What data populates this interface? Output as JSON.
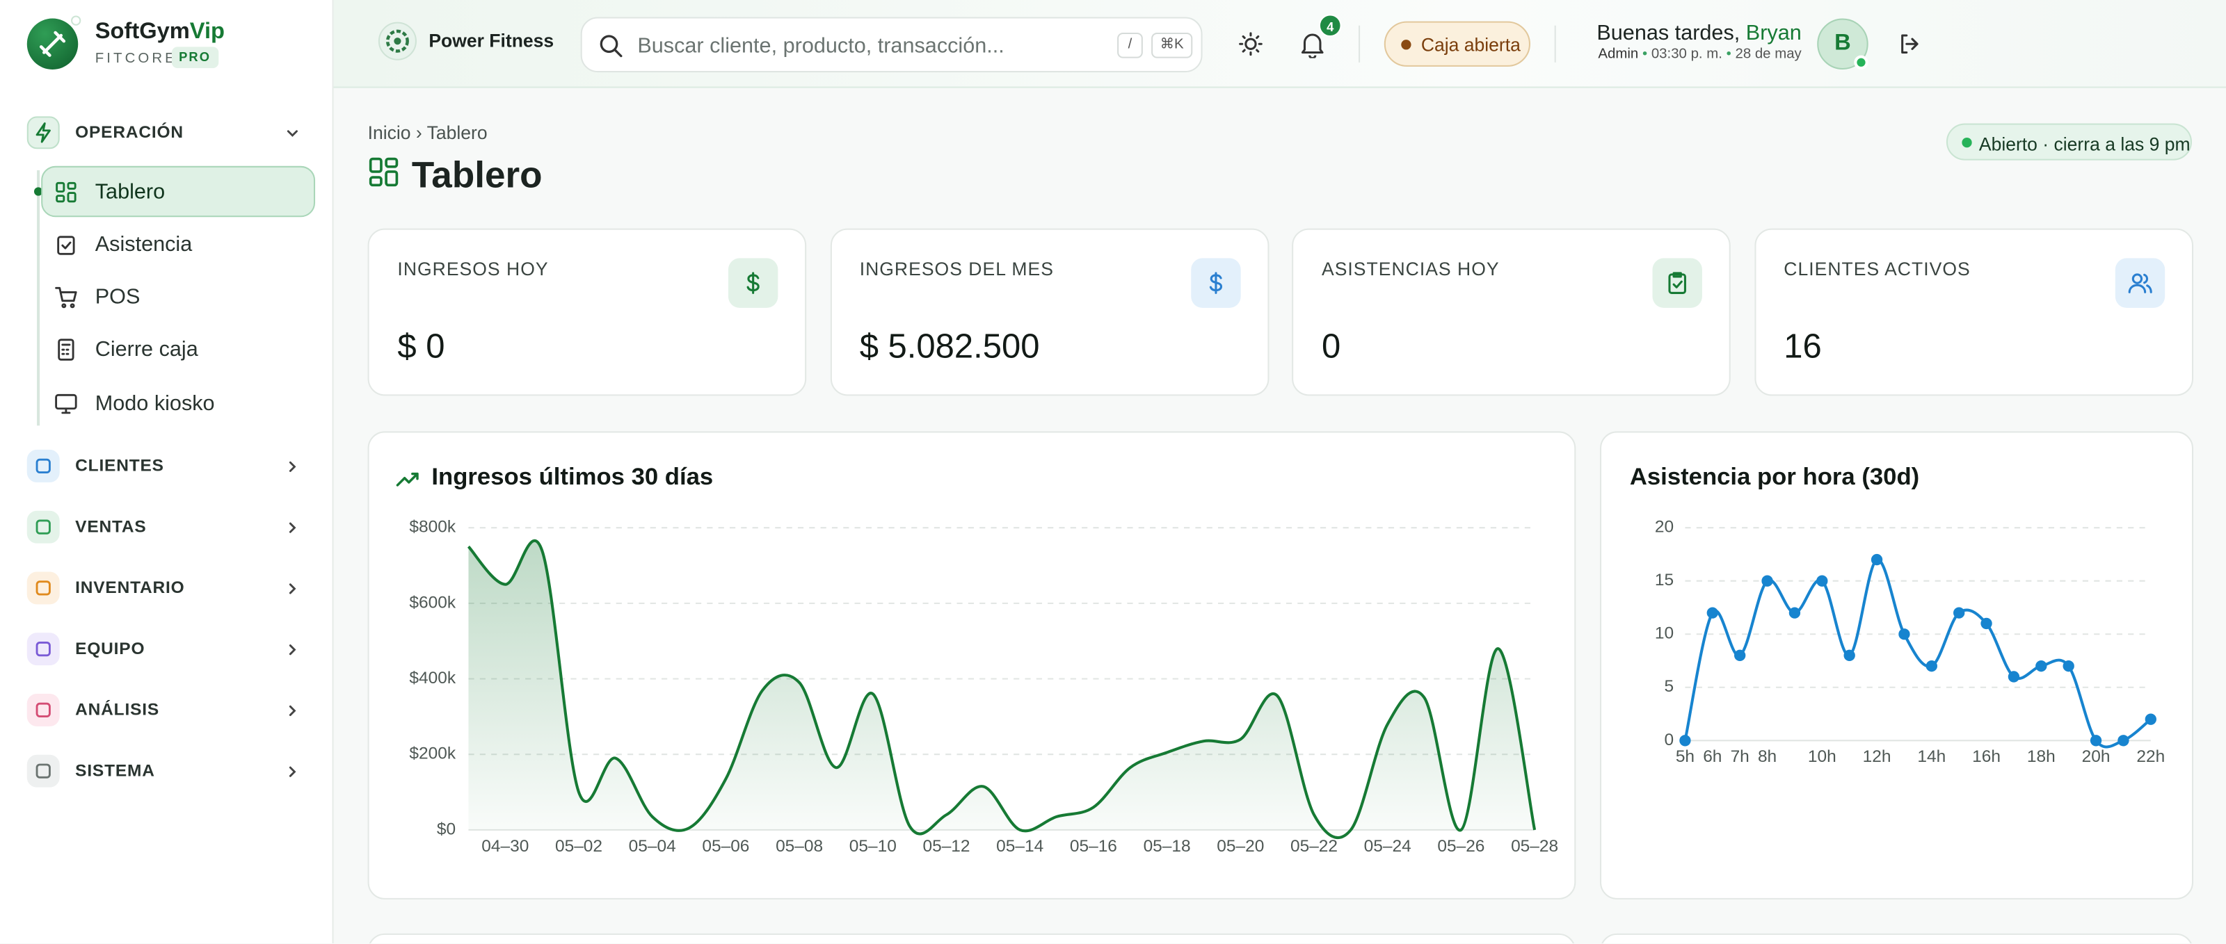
{
  "sidebar": {
    "brand": "SoftGym",
    "brand_accent": "Vip",
    "sub": "FITCORE",
    "badge": "PRO",
    "groups": [
      {
        "label": "OPERACIÓN",
        "items": [
          "Tablero",
          "Asistencia",
          "POS",
          "Cierre caja",
          "Modo kiosko"
        ]
      },
      {
        "label": "CLIENTES"
      },
      {
        "label": "VENTAS"
      },
      {
        "label": "INVENTARIO"
      },
      {
        "label": "EQUIPO"
      },
      {
        "label": "ANÁLISIS"
      },
      {
        "label": "SISTEMA"
      }
    ]
  },
  "header": {
    "gym": "Power Fitness",
    "search_placeholder": "Buscar cliente, producto, transacción...",
    "keys": [
      "/",
      "⌘K"
    ],
    "notifications": "4",
    "cash": "Caja abierta",
    "greeting": "Buenas tardes,",
    "user": "Bryan",
    "role": "Admin",
    "time": "03:30 p. m.",
    "date": "28 de may",
    "avatar": "B"
  },
  "page": {
    "breadcrumb": "Inicio › Tablero",
    "title": "Tablero",
    "status": "Abierto · cierra a las 9 pm"
  },
  "kpis": [
    {
      "label": "INGRESOS HOY",
      "value": "$ 0"
    },
    {
      "label": "INGRESOS DEL MES",
      "value": "$ 5.082.500"
    },
    {
      "label": "ASISTENCIAS HOY",
      "value": "0"
    },
    {
      "label": "CLIENTES ACTIVOS",
      "value": "16"
    }
  ],
  "chart_data": [
    {
      "type": "line",
      "title": "Ingresos últimos 30 días",
      "color": "#167a34",
      "area": true,
      "grid": true,
      "categories": [
        null,
        "04–30",
        null,
        "05–02",
        null,
        "05–04",
        null,
        "05–06",
        null,
        "05–08",
        null,
        "05–10",
        null,
        "05–12",
        null,
        "05–14",
        null,
        "05–16",
        null,
        "05–18",
        null,
        "05–20",
        null,
        "05–22",
        null,
        "05–24",
        null,
        "05–26",
        null,
        "05–28"
      ],
      "values": [
        750000,
        650000,
        740000,
        100000,
        190000,
        35000,
        5000,
        135000,
        370000,
        390000,
        165000,
        360000,
        10000,
        40000,
        115000,
        0,
        35000,
        60000,
        165000,
        205000,
        235000,
        240000,
        355000,
        40000,
        0,
        280000,
        350000,
        0,
        480000,
        0
      ],
      "ylim": [
        0,
        800000
      ],
      "yticks": [
        {
          "value": 0,
          "label": "$0"
        },
        {
          "value": 200000,
          "label": "$200k"
        },
        {
          "value": 400000,
          "label": "$400k"
        },
        {
          "value": 600000,
          "label": "$600k"
        },
        {
          "value": 800000,
          "label": "$800k"
        }
      ]
    },
    {
      "type": "line",
      "title": "Asistencia por hora (30d)",
      "color": "#1784cf",
      "markers": true,
      "grid": true,
      "categories": [
        "5h",
        "6h",
        "7h",
        "8h",
        null,
        "10h",
        null,
        "12h",
        null,
        "14h",
        null,
        "16h",
        null,
        "18h",
        null,
        "20h",
        null,
        "22h"
      ],
      "values": [
        0,
        12,
        8,
        15,
        12,
        15,
        8,
        17,
        10,
        7,
        12,
        11,
        6,
        7,
        7,
        0,
        0,
        2
      ],
      "ylim": [
        0,
        20
      ],
      "yticks": [
        0,
        5,
        10,
        15,
        20
      ]
    }
  ]
}
